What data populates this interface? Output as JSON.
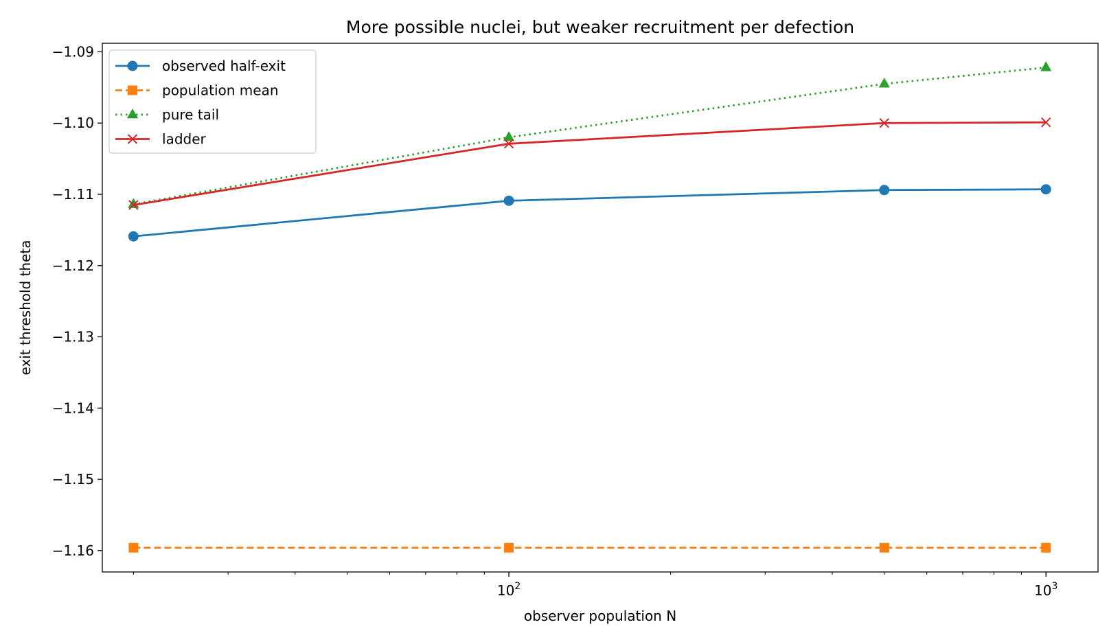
{
  "chart_data": {
    "type": "line",
    "title": "More possible nuclei, but weaker recruitment per defection",
    "xlabel": "observer population N",
    "ylabel": "exit threshold theta",
    "x_scale": "log",
    "xlim": [
      17.5,
      1250
    ],
    "ylim": [
      -1.163,
      -1.0888
    ],
    "x": [
      20,
      100,
      500,
      1000
    ],
    "yticks": [
      -1.16,
      -1.15,
      -1.14,
      -1.13,
      -1.12,
      -1.11,
      -1.1,
      -1.09
    ],
    "ytick_labels": [
      "−1.16",
      "−1.15",
      "−1.14",
      "−1.13",
      "−1.12",
      "−1.11",
      "−1.10",
      "−1.09"
    ],
    "xticks_major": [
      100,
      1000
    ],
    "xtick_labels": [
      {
        "base": "10",
        "exp": "2"
      },
      {
        "base": "10",
        "exp": "3"
      }
    ],
    "xticks_minor": [
      20,
      30,
      40,
      50,
      60,
      70,
      80,
      90,
      200,
      300,
      400,
      500,
      600,
      700,
      800,
      900
    ],
    "grid": false,
    "legend_position": "top-left",
    "series": [
      {
        "name": "observed half-exit",
        "values": [
          -1.1159,
          -1.1109,
          -1.1094,
          -1.1093
        ],
        "color": "#1f77b4",
        "dash": "solid",
        "marker": "circle"
      },
      {
        "name": "population mean",
        "values": [
          -1.1596,
          -1.1596,
          -1.1596,
          -1.1596
        ],
        "color": "#ff7f0e",
        "dash": "dashed",
        "marker": "square"
      },
      {
        "name": "pure tail",
        "values": [
          -1.1114,
          -1.102,
          -1.0945,
          -1.0922
        ],
        "color": "#2ca02c",
        "dash": "dotted",
        "marker": "triangle"
      },
      {
        "name": "ladder",
        "values": [
          -1.1115,
          -1.1029,
          -1.1,
          -1.0999
        ],
        "color": "#d62728",
        "dash": "solid",
        "marker": "x"
      }
    ]
  }
}
